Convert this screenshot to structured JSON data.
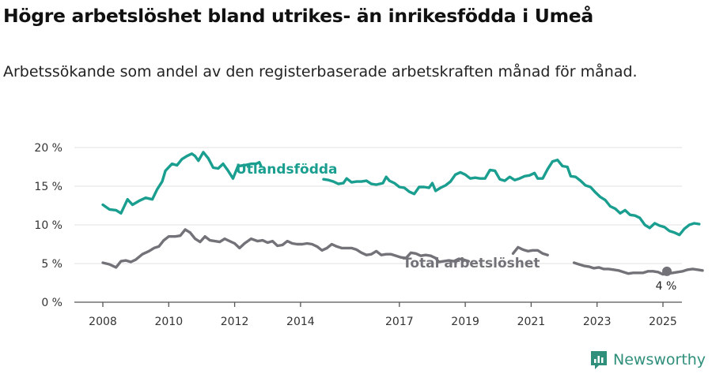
{
  "title": "Högre arbetslöshet bland utrikes- än inrikesfödda i Umeå",
  "subtitle": "Arbetssökande som andel av den registerbaserade arbetskraften månad för månad.",
  "brand": {
    "name": "Newsworthy",
    "logo_icon": "newsworthy-logo-icon"
  },
  "colors": {
    "foreign_born": "#1a9e8f",
    "total": "#737278",
    "grid": "#e2e2e2",
    "axis": "#555555"
  },
  "chart_data": {
    "type": "line",
    "title": "Högre arbetslöshet bland utrikes- än inrikesfödda i Umeå",
    "subtitle": "Arbetssökande som andel av den registerbaserade arbetskraften månad för månad.",
    "ylim": [
      0,
      20
    ],
    "y_ticks": [
      0,
      5,
      10,
      15,
      20
    ],
    "y_tick_labels": [
      "0 %",
      "5 %",
      "10 %",
      "15 %",
      "20 %"
    ],
    "x_ticks": [
      2008,
      2010,
      2012,
      2014,
      2017,
      2019,
      2021,
      2023,
      2025
    ],
    "x_tick_labels": [
      "2008",
      "2010",
      "2012",
      "2014",
      "2017",
      "2019",
      "2021",
      "2023",
      "2025"
    ],
    "grid": "horizontal",
    "end_label": "4 %",
    "series": [
      {
        "name": "Utlandsfödda",
        "points": [
          [
            2008.0,
            12.6
          ],
          [
            2008.2,
            12.0
          ],
          [
            2008.4,
            11.9
          ],
          [
            2008.55,
            11.5
          ],
          [
            2008.75,
            13.3
          ],
          [
            2008.9,
            12.6
          ],
          [
            2009.1,
            13.1
          ],
          [
            2009.3,
            13.5
          ],
          [
            2009.5,
            13.3
          ],
          [
            2009.65,
            14.6
          ],
          [
            2009.8,
            15.6
          ],
          [
            2009.9,
            17.0
          ],
          [
            2010.1,
            17.9
          ],
          [
            2010.25,
            17.7
          ],
          [
            2010.4,
            18.5
          ],
          [
            2010.55,
            18.9
          ],
          [
            2010.7,
            19.2
          ],
          [
            2010.8,
            18.9
          ],
          [
            2010.9,
            18.3
          ],
          [
            2011.05,
            19.4
          ],
          [
            2011.2,
            18.6
          ],
          [
            2011.35,
            17.4
          ],
          [
            2011.5,
            17.3
          ],
          [
            2011.65,
            17.9
          ],
          [
            2011.8,
            17.0
          ],
          [
            2011.95,
            16.0
          ],
          [
            2012.1,
            17.6
          ],
          [
            2012.3,
            17.7
          ],
          [
            2012.5,
            17.9
          ],
          [
            2012.65,
            17.9
          ],
          [
            2012.75,
            18.1
          ],
          [
            2012.8,
            17.6
          ],
          null,
          [
            2014.7,
            15.9
          ],
          [
            2014.85,
            15.8
          ],
          [
            2015.0,
            15.6
          ],
          [
            2015.15,
            15.3
          ],
          [
            2015.3,
            15.4
          ],
          [
            2015.4,
            16.0
          ],
          [
            2015.55,
            15.5
          ],
          [
            2015.7,
            15.6
          ],
          [
            2015.85,
            15.6
          ],
          [
            2016.0,
            15.7
          ],
          [
            2016.15,
            15.3
          ],
          [
            2016.3,
            15.2
          ],
          [
            2016.5,
            15.4
          ],
          [
            2016.6,
            16.2
          ],
          [
            2016.7,
            15.7
          ],
          [
            2016.85,
            15.4
          ],
          [
            2017.0,
            14.9
          ],
          [
            2017.15,
            14.8
          ],
          [
            2017.3,
            14.3
          ],
          [
            2017.45,
            14.0
          ],
          [
            2017.6,
            14.9
          ],
          [
            2017.75,
            14.9
          ],
          [
            2017.9,
            14.8
          ],
          [
            2018.0,
            15.4
          ],
          [
            2018.1,
            14.4
          ],
          [
            2018.25,
            14.8
          ],
          [
            2018.4,
            15.1
          ],
          [
            2018.55,
            15.6
          ],
          [
            2018.7,
            16.5
          ],
          [
            2018.85,
            16.8
          ],
          [
            2019.0,
            16.5
          ],
          [
            2019.15,
            16.0
          ],
          [
            2019.3,
            16.1
          ],
          [
            2019.45,
            16.0
          ],
          [
            2019.6,
            16.0
          ],
          [
            2019.75,
            17.1
          ],
          [
            2019.9,
            17.0
          ],
          [
            2020.05,
            15.9
          ],
          [
            2020.2,
            15.7
          ],
          [
            2020.35,
            16.2
          ],
          [
            2020.5,
            15.8
          ],
          [
            2020.65,
            16.0
          ],
          [
            2020.8,
            16.3
          ],
          [
            2020.95,
            16.4
          ],
          [
            2021.1,
            16.7
          ],
          [
            2021.2,
            16.0
          ],
          [
            2021.35,
            16.0
          ],
          [
            2021.5,
            17.2
          ],
          [
            2021.65,
            18.2
          ],
          [
            2021.8,
            18.4
          ],
          [
            2021.95,
            17.6
          ],
          [
            2022.1,
            17.5
          ],
          [
            2022.2,
            16.3
          ],
          [
            2022.35,
            16.2
          ],
          [
            2022.5,
            15.7
          ],
          [
            2022.65,
            15.1
          ],
          [
            2022.8,
            14.9
          ],
          [
            2022.95,
            14.2
          ],
          [
            2023.1,
            13.6
          ],
          [
            2023.25,
            13.2
          ],
          [
            2023.4,
            12.4
          ],
          [
            2023.55,
            12.1
          ],
          [
            2023.7,
            11.5
          ],
          [
            2023.85,
            11.9
          ],
          [
            2024.0,
            11.3
          ],
          [
            2024.15,
            11.2
          ],
          [
            2024.3,
            10.9
          ],
          [
            2024.45,
            10.0
          ],
          [
            2024.6,
            9.6
          ],
          [
            2024.75,
            10.2
          ],
          [
            2024.9,
            9.9
          ],
          [
            2025.05,
            9.7
          ],
          [
            2025.2,
            9.2
          ],
          [
            2025.35,
            9.0
          ],
          [
            2025.5,
            8.7
          ],
          [
            2025.65,
            9.5
          ],
          [
            2025.8,
            10.0
          ],
          [
            2025.95,
            10.2
          ],
          [
            2026.1,
            10.1
          ]
        ]
      },
      {
        "name": "Total arbetslöshet",
        "points": [
          [
            2008.0,
            5.1
          ],
          [
            2008.2,
            4.9
          ],
          [
            2008.4,
            4.5
          ],
          [
            2008.55,
            5.3
          ],
          [
            2008.7,
            5.4
          ],
          [
            2008.85,
            5.2
          ],
          [
            2009.0,
            5.5
          ],
          [
            2009.2,
            6.2
          ],
          [
            2009.4,
            6.6
          ],
          [
            2009.55,
            7.0
          ],
          [
            2009.7,
            7.2
          ],
          [
            2009.85,
            8.0
          ],
          [
            2010.0,
            8.5
          ],
          [
            2010.2,
            8.5
          ],
          [
            2010.35,
            8.6
          ],
          [
            2010.5,
            9.4
          ],
          [
            2010.65,
            9.0
          ],
          [
            2010.8,
            8.2
          ],
          [
            2010.95,
            7.8
          ],
          [
            2011.1,
            8.5
          ],
          [
            2011.25,
            8.0
          ],
          [
            2011.4,
            7.9
          ],
          [
            2011.55,
            7.8
          ],
          [
            2011.7,
            8.2
          ],
          [
            2011.85,
            7.9
          ],
          [
            2012.0,
            7.6
          ],
          [
            2012.15,
            7.0
          ],
          [
            2012.3,
            7.6
          ],
          [
            2012.5,
            8.2
          ],
          [
            2012.7,
            7.9
          ],
          [
            2012.85,
            8.0
          ],
          [
            2013.0,
            7.7
          ],
          [
            2013.15,
            7.9
          ],
          [
            2013.3,
            7.3
          ],
          [
            2013.45,
            7.4
          ],
          [
            2013.6,
            7.9
          ],
          [
            2013.75,
            7.6
          ],
          [
            2013.9,
            7.5
          ],
          [
            2014.05,
            7.5
          ],
          [
            2014.2,
            7.6
          ],
          [
            2014.35,
            7.5
          ],
          [
            2014.5,
            7.2
          ],
          [
            2014.65,
            6.7
          ],
          [
            2014.8,
            7.0
          ],
          [
            2014.95,
            7.5
          ],
          [
            2015.1,
            7.2
          ],
          [
            2015.25,
            7.0
          ],
          [
            2015.4,
            7.0
          ],
          [
            2015.55,
            7.0
          ],
          [
            2015.7,
            6.8
          ],
          [
            2015.85,
            6.4
          ],
          [
            2016.0,
            6.1
          ],
          [
            2016.15,
            6.2
          ],
          [
            2016.3,
            6.6
          ],
          [
            2016.45,
            6.1
          ],
          [
            2016.6,
            6.2
          ],
          [
            2016.75,
            6.2
          ],
          [
            2016.9,
            6.0
          ],
          [
            2017.05,
            5.8
          ],
          [
            2017.2,
            5.7
          ],
          [
            2017.35,
            6.4
          ],
          [
            2017.5,
            6.3
          ],
          [
            2017.65,
            6.0
          ],
          [
            2017.8,
            6.1
          ],
          [
            2017.95,
            6.0
          ],
          [
            2018.1,
            5.7
          ],
          [
            2018.2,
            5.2
          ],
          [
            2018.35,
            5.3
          ],
          [
            2018.5,
            5.4
          ],
          [
            2018.65,
            5.3
          ],
          [
            2018.8,
            5.6
          ],
          [
            2018.95,
            5.5
          ],
          [
            2019.1,
            5.3
          ],
          null,
          [
            2020.45,
            6.3
          ],
          [
            2020.6,
            7.1
          ],
          [
            2020.75,
            6.8
          ],
          [
            2020.9,
            6.6
          ],
          [
            2021.05,
            6.7
          ],
          [
            2021.2,
            6.7
          ],
          [
            2021.35,
            6.3
          ],
          [
            2021.5,
            6.1
          ],
          null,
          [
            2022.3,
            5.1
          ],
          [
            2022.45,
            4.9
          ],
          [
            2022.6,
            4.7
          ],
          [
            2022.75,
            4.6
          ],
          [
            2022.9,
            4.4
          ],
          [
            2023.05,
            4.5
          ],
          [
            2023.2,
            4.3
          ],
          [
            2023.35,
            4.3
          ],
          [
            2023.5,
            4.2
          ],
          [
            2023.65,
            4.1
          ],
          [
            2023.8,
            3.9
          ],
          [
            2023.95,
            3.7
          ],
          [
            2024.1,
            3.8
          ],
          [
            2024.25,
            3.8
          ],
          [
            2024.4,
            3.8
          ],
          [
            2024.55,
            4.0
          ],
          [
            2024.7,
            4.0
          ],
          [
            2024.85,
            3.9
          ],
          [
            2025.0,
            3.6
          ],
          [
            2025.15,
            3.7
          ],
          [
            2025.3,
            3.8
          ],
          [
            2025.45,
            3.9
          ],
          [
            2025.6,
            4.0
          ],
          [
            2025.75,
            4.2
          ],
          [
            2025.9,
            4.3
          ],
          [
            2026.05,
            4.2
          ],
          [
            2026.2,
            4.1
          ]
        ]
      }
    ]
  }
}
